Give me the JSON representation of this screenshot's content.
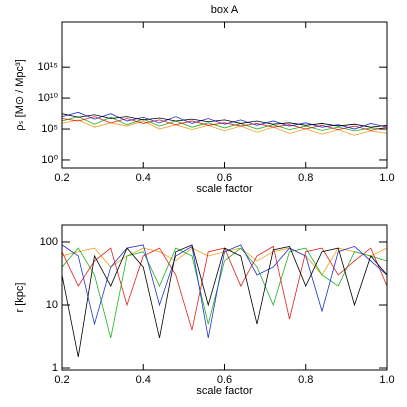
{
  "chart_data": [
    {
      "type": "line",
      "title": "box A",
      "xlabel": "scale factor",
      "ylabel": "ρₛ [M⊙ / Mpc³]",
      "log": true,
      "xlim": [
        0.2,
        1.0
      ],
      "xticks": [
        0.2,
        0.4,
        0.6,
        0.8,
        {
          "value": 1.0,
          "label": "1.0"
        }
      ],
      "ylim": [
        0.05,
        2e+22
      ],
      "yticks": [
        {
          "value": 1,
          "label": "10⁰"
        },
        {
          "value": 100000.0,
          "label": "10⁵"
        },
        {
          "value": 10000000000.0,
          "label": "10¹⁰"
        },
        {
          "value": 1000000000000000.0,
          "label": "10¹⁵"
        }
      ],
      "x": [
        0.2,
        0.24,
        0.28,
        0.32,
        0.36,
        0.4,
        0.44,
        0.48,
        0.52,
        0.56,
        0.6,
        0.64,
        0.68,
        0.72,
        0.76,
        0.8,
        0.84,
        0.88,
        0.92,
        0.96,
        1.0
      ],
      "series": [
        {
          "color": "#f0a020",
          "values": [
            800000.0,
            3000000.0,
            200000.0,
            1000000.0,
            300000.0,
            2000000.0,
            100000.0,
            500000.0,
            80000.0,
            400000.0,
            50000.0,
            300000.0,
            30000.0,
            200000.0,
            20000.0,
            100000.0,
            15000.0,
            80000.0,
            10000.0,
            50000.0,
            20000.0
          ]
        },
        {
          "color": "#20b020",
          "values": [
            2000000.0,
            10000000.0,
            600000.0,
            8000000.0,
            500000.0,
            4000000.0,
            300000.0,
            2000000.0,
            200000.0,
            1000000.0,
            150000.0,
            800000.0,
            100000.0,
            500000.0,
            80000.0,
            300000.0,
            60000.0,
            200000.0,
            50000.0,
            150000.0,
            100000.0
          ]
        },
        {
          "color": "#e02020",
          "values": [
            5000000.0,
            2000000.0,
            10000000.0,
            1000000.0,
            5000000.0,
            800000.0,
            3000000.0,
            500000.0,
            2000000.0,
            400000.0,
            1000000.0,
            300000.0,
            800000.0,
            200000.0,
            500000.0,
            100000.0,
            400000.0,
            80000.0,
            300000.0,
            60000.0,
            200000.0
          ]
        },
        {
          "color": "#2030d0",
          "values": [
            10000000.0,
            50000000.0,
            4000000.0,
            30000000.0,
            2000000.0,
            8000000.0,
            1000000.0,
            10000000.0,
            800000.0,
            5000000.0,
            600000.0,
            3000000.0,
            400000.0,
            2000000.0,
            300000.0,
            1000000.0,
            200000.0,
            500000.0,
            100000.0,
            800000.0,
            200000.0
          ]
        },
        {
          "color": "#000000",
          "values": [
            30000000.0,
            8000000.0,
            20000000.0,
            5000000.0,
            10000000.0,
            3000000.0,
            6000000.0,
            2000000.0,
            4000000.0,
            1500000.0,
            3000000.0,
            800000.0,
            2000000.0,
            600000.0,
            1000000.0,
            400000.0,
            800000.0,
            300000.0,
            600000.0,
            200000.0,
            400000.0
          ]
        }
      ]
    },
    {
      "type": "line",
      "xlabel": "scale factor",
      "ylabel": "r [kpc]",
      "log": true,
      "xlim": [
        0.2,
        1.0
      ],
      "xticks": [
        0.2,
        0.4,
        0.6,
        0.8,
        {
          "value": 1.0,
          "label": "1.0"
        }
      ],
      "ylim": [
        0.93,
        186
      ],
      "yticks": [
        1,
        10,
        100
      ],
      "x": [
        0.2,
        0.24,
        0.28,
        0.32,
        0.36,
        0.4,
        0.44,
        0.48,
        0.52,
        0.56,
        0.6,
        0.64,
        0.68,
        0.72,
        0.76,
        0.8,
        0.84,
        0.88,
        0.92,
        0.96,
        1.0
      ],
      "series": [
        {
          "color": "#f0a020",
          "values": [
            60,
            70,
            80,
            40,
            60,
            80,
            70,
            50,
            80,
            60,
            70,
            80,
            50,
            70,
            80,
            60,
            30,
            80,
            70,
            60,
            80
          ]
        },
        {
          "color": "#20b020",
          "values": [
            40,
            80,
            30,
            3,
            60,
            70,
            20,
            80,
            60,
            5,
            50,
            80,
            40,
            10,
            70,
            80,
            30,
            20,
            70,
            60,
            50
          ]
        },
        {
          "color": "#e02020",
          "values": [
            70,
            20,
            50,
            80,
            10,
            60,
            80,
            30,
            4,
            70,
            80,
            20,
            60,
            85,
            6,
            70,
            80,
            30,
            50,
            80,
            20
          ]
        },
        {
          "color": "#2030d0",
          "values": [
            90,
            60,
            5,
            40,
            80,
            90,
            10,
            60,
            85,
            3,
            70,
            90,
            30,
            40,
            80,
            60,
            8,
            70,
            85,
            50,
            30
          ]
        },
        {
          "color": "#000000",
          "values": [
            30,
            1.5,
            60,
            20,
            80,
            40,
            3,
            70,
            90,
            10,
            80,
            60,
            5,
            75,
            85,
            20,
            70,
            80,
            10,
            60,
            30
          ]
        }
      ]
    }
  ]
}
